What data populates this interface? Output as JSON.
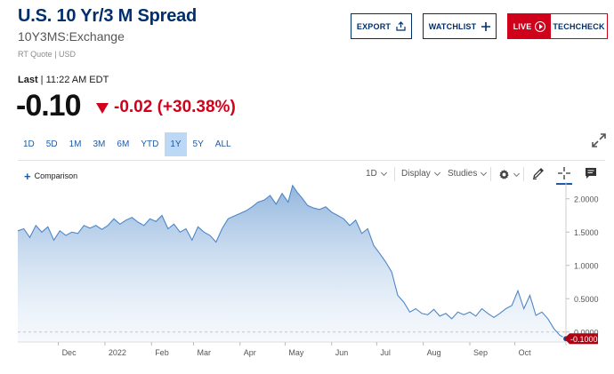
{
  "header": {
    "title": "U.S. 10 Yr/3 M Spread",
    "symbol": "10Y3MS:Exchange",
    "rt_quote": "RT Quote | USD",
    "last_label": "Last",
    "last_time": " | 11:22 AM EDT",
    "price": "-0.10",
    "change": "-0.02 (+30.38%)"
  },
  "buttons": {
    "export": "EXPORT",
    "watchlist": "WATCHLIST",
    "live": "LIVE",
    "techcheck": "TECHCHECK"
  },
  "ranges": [
    "1D",
    "5D",
    "1M",
    "3M",
    "6M",
    "YTD",
    "1Y",
    "5Y",
    "ALL"
  ],
  "active_range": "1Y",
  "toolbar": {
    "comparison": "Comparison",
    "interval": "1D",
    "display": "Display",
    "studies": "Studies"
  },
  "colors": {
    "brand_navy": "#002f6c",
    "down_red": "#d0021b",
    "link_blue": "#1f5aa6",
    "line": "#4f86c6",
    "active_range_bg": "#bcd8f5"
  },
  "icons": [
    "export-icon",
    "plus-icon",
    "play-circle-icon",
    "expand-icon",
    "gear-icon",
    "pencil-icon",
    "crosshair-icon",
    "comment-icon",
    "chevron-down-icon"
  ],
  "chart_data": {
    "type": "area",
    "x_tick_labels": [
      "Dec",
      "2022",
      "Feb",
      "Mar",
      "Apr",
      "May",
      "Jun",
      "Jul",
      "Aug",
      "Sep",
      "Oct"
    ],
    "y_tick_labels": [
      "2.0000",
      "1.5000",
      "1.0000",
      "0.5000",
      "0.0000"
    ],
    "ylim": [
      -0.15,
      2.25
    ],
    "last_value_label": "-0.1000",
    "grid": false,
    "series": [
      {
        "x": [
          "2021-11-04",
          "2021-11-08",
          "2021-11-12",
          "2021-11-16",
          "2021-11-20",
          "2021-11-24",
          "2021-11-28",
          "2021-12-02",
          "2021-12-06",
          "2021-12-10",
          "2021-12-14",
          "2021-12-18",
          "2021-12-22",
          "2021-12-26",
          "2021-12-30",
          "2022-01-03",
          "2022-01-07",
          "2022-01-11",
          "2022-01-15",
          "2022-01-19",
          "2022-01-23",
          "2022-01-27",
          "2022-01-31",
          "2022-02-04",
          "2022-02-08",
          "2022-02-12",
          "2022-02-16",
          "2022-02-20",
          "2022-02-24",
          "2022-02-28",
          "2022-03-04",
          "2022-03-08",
          "2022-03-12",
          "2022-03-16",
          "2022-03-20",
          "2022-03-24",
          "2022-03-28",
          "2022-04-01",
          "2022-04-05",
          "2022-04-09",
          "2022-04-13",
          "2022-04-17",
          "2022-04-21",
          "2022-04-25",
          "2022-04-29",
          "2022-05-03",
          "2022-05-06",
          "2022-05-09",
          "2022-05-12",
          "2022-05-16",
          "2022-05-20",
          "2022-05-24",
          "2022-05-28",
          "2022-06-01",
          "2022-06-05",
          "2022-06-09",
          "2022-06-13",
          "2022-06-17",
          "2022-06-21",
          "2022-06-25",
          "2022-06-29",
          "2022-07-03",
          "2022-07-07",
          "2022-07-11",
          "2022-07-15",
          "2022-07-19",
          "2022-07-23",
          "2022-07-27",
          "2022-07-31",
          "2022-08-04",
          "2022-08-08",
          "2022-08-12",
          "2022-08-16",
          "2022-08-20",
          "2022-08-24",
          "2022-08-28",
          "2022-09-01",
          "2022-09-05",
          "2022-09-09",
          "2022-09-13",
          "2022-09-17",
          "2022-09-21",
          "2022-09-25",
          "2022-09-29",
          "2022-10-03",
          "2022-10-07",
          "2022-10-11",
          "2022-10-15",
          "2022-10-19",
          "2022-10-23",
          "2022-10-27",
          "2022-10-31",
          "2022-11-04"
        ],
        "y": [
          1.52,
          1.55,
          1.42,
          1.6,
          1.5,
          1.58,
          1.38,
          1.52,
          1.45,
          1.5,
          1.48,
          1.6,
          1.56,
          1.6,
          1.54,
          1.6,
          1.7,
          1.62,
          1.68,
          1.72,
          1.65,
          1.6,
          1.7,
          1.66,
          1.75,
          1.55,
          1.62,
          1.5,
          1.55,
          1.38,
          1.58,
          1.5,
          1.45,
          1.35,
          1.55,
          1.7,
          1.74,
          1.78,
          1.82,
          1.88,
          1.95,
          1.98,
          2.05,
          1.92,
          2.08,
          1.95,
          2.2,
          2.1,
          2.02,
          1.9,
          1.86,
          1.84,
          1.88,
          1.8,
          1.75,
          1.7,
          1.6,
          1.68,
          1.48,
          1.55,
          1.3,
          1.18,
          1.05,
          0.9,
          0.55,
          0.45,
          0.3,
          0.35,
          0.28,
          0.26,
          0.34,
          0.24,
          0.28,
          0.2,
          0.3,
          0.26,
          0.3,
          0.24,
          0.35,
          0.28,
          0.22,
          0.28,
          0.35,
          0.4,
          0.62,
          0.35,
          0.55,
          0.25,
          0.3,
          0.2,
          0.05,
          -0.05,
          -0.1
        ]
      }
    ]
  }
}
